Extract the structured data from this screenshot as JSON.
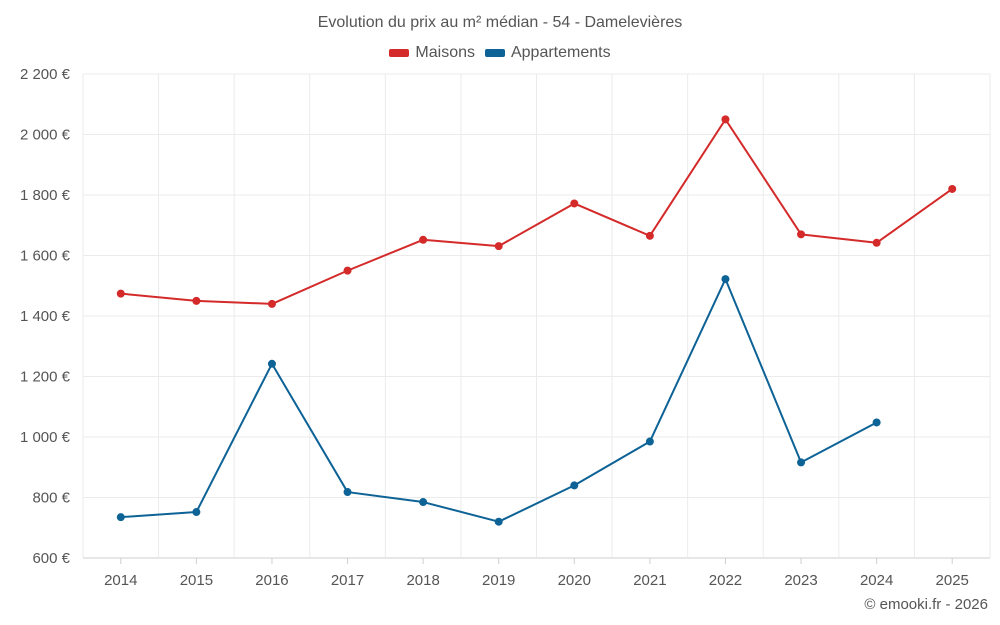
{
  "chart_data": {
    "type": "line",
    "title": "Evolution du prix au m² médian - 54 - Damelevières",
    "xlabel": "",
    "ylabel": "",
    "ylim": [
      600,
      2200
    ],
    "yticks": [
      600,
      800,
      1000,
      1200,
      1400,
      1600,
      1800,
      2000,
      2200
    ],
    "ytick_labels": [
      "600 €",
      "800 €",
      "1 000 €",
      "1 200 €",
      "1 400 €",
      "1 600 €",
      "1 800 €",
      "2 000 €",
      "2 200 €"
    ],
    "categories": [
      "2014",
      "2015",
      "2016",
      "2017",
      "2018",
      "2019",
      "2020",
      "2021",
      "2022",
      "2023",
      "2024",
      "2025"
    ],
    "series": [
      {
        "name": "Maisons",
        "color": "#d42a2a",
        "values": [
          1474,
          1450,
          1440,
          1550,
          1652,
          1631,
          1772,
          1665,
          2050,
          1670,
          1642,
          1820
        ]
      },
      {
        "name": "Appartements",
        "color": "#0d6296",
        "values": [
          735,
          752,
          1242,
          818,
          785,
          720,
          840,
          985,
          1522,
          916,
          1048,
          null
        ]
      }
    ],
    "grid": true,
    "legend_position": "top-center"
  },
  "credit": "© emooki.fr - 2026"
}
